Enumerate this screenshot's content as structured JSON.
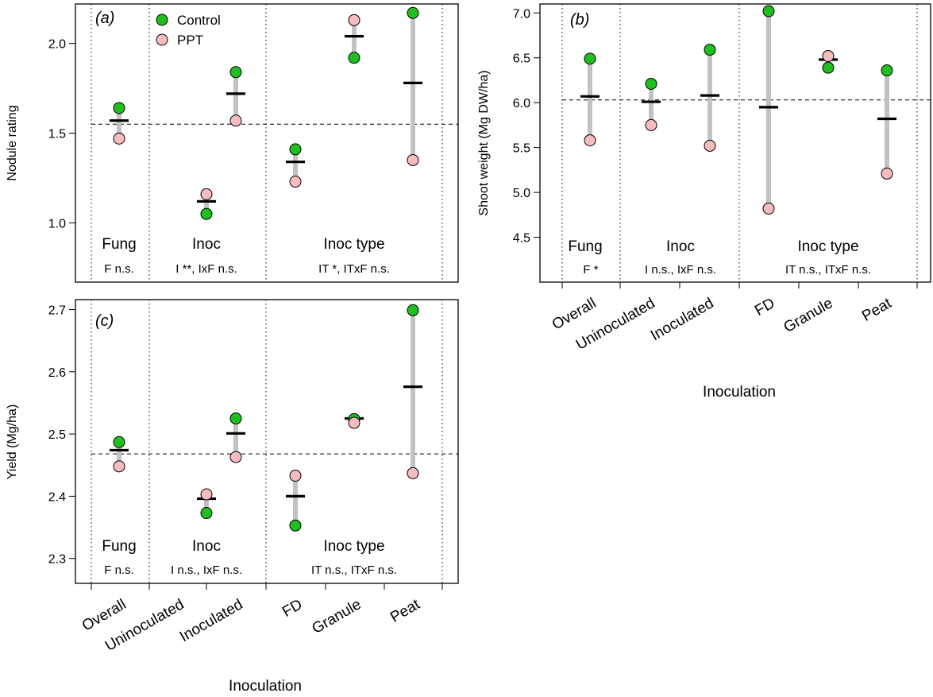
{
  "figure": {
    "xlabel": "Inoculation",
    "legend": [
      {
        "label": "Control",
        "color": "#1fbf1f"
      },
      {
        "label": "PPT",
        "color": "#f7bcc0"
      }
    ],
    "colors": {
      "control": "#1fbf1f",
      "ppt": "#f7bcc0",
      "bar": "#c2c2c2"
    }
  },
  "chart_data": [
    {
      "type": "scatter",
      "panel": "(a)",
      "title": "",
      "ylabel": "Nodule rating",
      "xlabel": "",
      "categories": [
        "Overall",
        "Uninoculated",
        "Inoculated",
        "FD",
        "Granule",
        "Peat"
      ],
      "ylim": [
        0.67,
        2.22
      ],
      "yticks": [
        "1.0",
        "1.5",
        "2.0"
      ],
      "reference_line": 1.55,
      "series": [
        {
          "name": "Control",
          "values": [
            1.64,
            1.05,
            1.84,
            1.41,
            1.92,
            2.17
          ]
        },
        {
          "name": "PPT",
          "values": [
            1.47,
            1.16,
            1.57,
            1.23,
            2.13,
            1.35
          ]
        },
        {
          "name": "Mean",
          "values": [
            1.57,
            1.12,
            1.72,
            1.34,
            2.04,
            1.78
          ]
        }
      ],
      "groups": [
        {
          "label": "Fung",
          "stats": "F n.s."
        },
        {
          "label": "Inoc",
          "stats": "I **, IxF n.s."
        },
        {
          "label": "Inoc type",
          "stats": "IT *, ITxF n.s."
        }
      ]
    },
    {
      "type": "scatter",
      "panel": "(b)",
      "title": "",
      "ylabel": "Shoot weight (Mg DW/ha)",
      "xlabel": "Inoculation",
      "categories": [
        "Overall",
        "Uninoculated",
        "Inoculated",
        "FD",
        "Granule",
        "Peat"
      ],
      "ylim": [
        4.0,
        7.1
      ],
      "yticks": [
        "4.5",
        "5.0",
        "5.5",
        "6.0",
        "6.5",
        "7.0"
      ],
      "reference_line": 6.03,
      "series": [
        {
          "name": "Control",
          "values": [
            6.49,
            6.21,
            6.59,
            7.02,
            6.39,
            6.36
          ]
        },
        {
          "name": "PPT",
          "values": [
            5.58,
            5.75,
            5.52,
            4.82,
            6.52,
            5.21
          ]
        },
        {
          "name": "Mean",
          "values": [
            6.07,
            6.01,
            6.08,
            5.95,
            6.48,
            5.82
          ]
        }
      ],
      "groups": [
        {
          "label": "Fung",
          "stats": "F *"
        },
        {
          "label": "Inoc",
          "stats": "I n.s., IxF n.s."
        },
        {
          "label": "Inoc type",
          "stats": "IT n.s., ITxF n.s."
        }
      ]
    },
    {
      "type": "scatter",
      "panel": "(c)",
      "title": "",
      "ylabel": "Yield (Mg/ha)",
      "xlabel": "Inoculation",
      "categories": [
        "Overall",
        "Uninoculated",
        "Inoculated",
        "FD",
        "Granule",
        "Peat"
      ],
      "ylim": [
        2.26,
        2.716
      ],
      "yticks": [
        "2.3",
        "2.4",
        "2.5",
        "2.6",
        "2.7"
      ],
      "reference_line": 2.468,
      "series": [
        {
          "name": "Control",
          "values": [
            2.487,
            2.373,
            2.525,
            2.353,
            2.524,
            2.699
          ]
        },
        {
          "name": "PPT",
          "values": [
            2.448,
            2.403,
            2.463,
            2.433,
            2.518,
            2.437
          ]
        },
        {
          "name": "Mean",
          "values": [
            2.474,
            2.396,
            2.501,
            2.4,
            2.525,
            2.576
          ]
        }
      ],
      "groups": [
        {
          "label": "Fung",
          "stats": "F n.s."
        },
        {
          "label": "Inoc",
          "stats": "I n.s., IxF n.s."
        },
        {
          "label": "Inoc type",
          "stats": "IT n.s., ITxF n.s."
        }
      ]
    }
  ]
}
